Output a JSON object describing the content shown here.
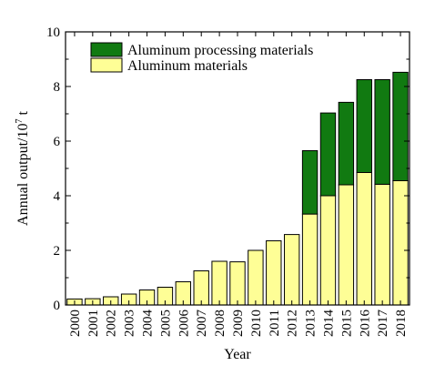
{
  "chart_data": {
    "type": "bar",
    "stacked": true,
    "categories": [
      "2000",
      "2001",
      "2002",
      "2003",
      "2004",
      "2005",
      "2006",
      "2007",
      "2008",
      "2009",
      "2010",
      "2011",
      "2012",
      "2013",
      "2014",
      "2015",
      "2016",
      "2017",
      "2018"
    ],
    "series": [
      {
        "name": "Aluminum materials",
        "color": "#fefe96",
        "values": [
          0.22,
          0.23,
          0.3,
          0.4,
          0.55,
          0.65,
          0.85,
          1.25,
          1.6,
          1.58,
          2.0,
          2.35,
          2.58,
          3.33,
          4.0,
          4.4,
          4.85,
          4.42,
          4.55
        ]
      },
      {
        "name": "Aluminum processing materials",
        "color": "#117a11",
        "values": [
          0,
          0,
          0,
          0,
          0,
          0,
          0,
          0,
          0,
          0,
          0,
          0,
          0,
          2.32,
          3.03,
          3.02,
          3.4,
          3.83,
          3.97
        ]
      }
    ],
    "xlabel": "Year",
    "ylabel_main": "Annual output/10",
    "ylabel_sup": "7",
    "ylabel_unit": " t",
    "ylim": [
      0,
      10
    ],
    "yticks": [
      0,
      2,
      4,
      6,
      8,
      10
    ],
    "ytick_labels": [
      "0",
      "2",
      "4",
      "6",
      "8",
      "10"
    ],
    "legend_position": "top-left",
    "grid": false
  }
}
